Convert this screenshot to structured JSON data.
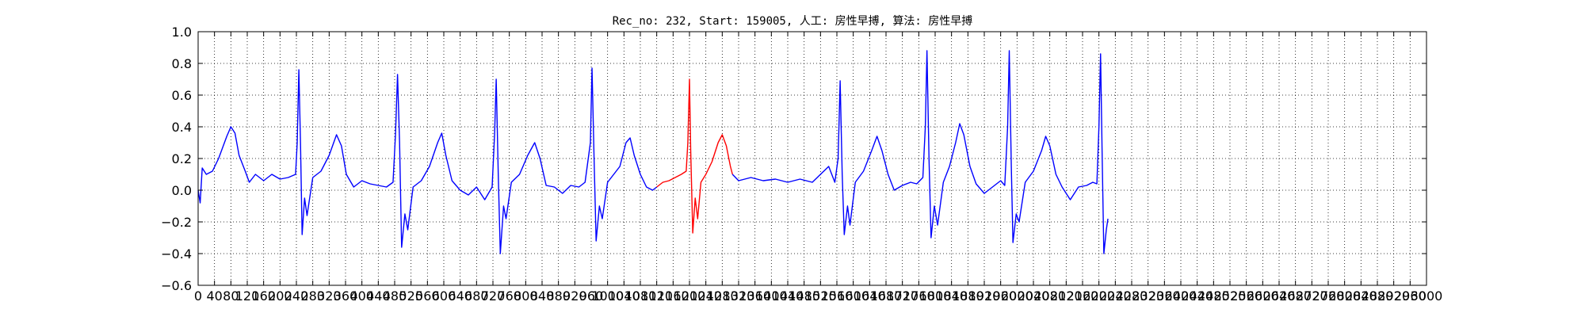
{
  "chart_data": {
    "type": "line",
    "title": "Rec_no: 232, Start: 159005, 人工: 房性早搏, 算法: 房性早搏",
    "xlabel": "",
    "ylabel": "",
    "xlim": [
      0,
      3000
    ],
    "ylim": [
      -0.6,
      1.0
    ],
    "grid": true,
    "grid_style": "dotted",
    "y_ticks": [
      -0.6,
      -0.4,
      -0.2,
      0.0,
      0.2,
      0.4,
      0.6,
      0.8,
      1.0
    ],
    "y_tick_labels": [
      "−0.6",
      "−0.4",
      "−0.2",
      "0.0",
      "0.2",
      "0.4",
      "0.6",
      "0.8",
      "1.0"
    ],
    "x_ticks": [
      0,
      40,
      80,
      120,
      160,
      200,
      240,
      280,
      320,
      360,
      400,
      440,
      480,
      520,
      560,
      600,
      640,
      680,
      720,
      760,
      800,
      840,
      880,
      920,
      960,
      1000,
      1040,
      1080,
      1120,
      1160,
      1200,
      1240,
      1280,
      1320,
      1360,
      1400,
      1440,
      1480,
      1520,
      1560,
      1600,
      1640,
      1680,
      1720,
      1760,
      1800,
      1840,
      1880,
      1920,
      1960,
      2000,
      2040,
      2080,
      2120,
      2160,
      2200,
      2240,
      2280,
      2320,
      2360,
      2400,
      2440,
      2480,
      2520,
      2560,
      2600,
      2640,
      2680,
      2720,
      2760,
      2800,
      2840,
      2880,
      2920,
      2960,
      3000
    ],
    "x_tick_labels": [
      "0",
      "40",
      "80",
      "120",
      "160",
      "200",
      "240",
      "280",
      "320",
      "360",
      "400",
      "440",
      "480",
      "520",
      "560",
      "600",
      "640",
      "680",
      "720",
      "760",
      "800",
      "840",
      "880",
      "920",
      "960",
      "1000",
      "1040",
      "1080",
      "1120",
      "1160",
      "1200",
      "1240",
      "1280",
      "1320",
      "1360",
      "1400",
      "1440",
      "1480",
      "1520",
      "1560",
      "1600",
      "1640",
      "1680",
      "1720",
      "1760",
      "1800",
      "1840",
      "1880",
      "1920",
      "1960",
      "2000",
      "2040",
      "2080",
      "2120",
      "2160",
      "2200",
      "2240",
      "2280",
      "2320",
      "2360",
      "2400",
      "2440",
      "2480",
      "2520",
      "2560",
      "2600",
      "2640",
      "2680",
      "2720",
      "2760",
      "2800",
      "2840",
      "2880",
      "2920",
      "2960",
      "3000"
    ],
    "series": [
      {
        "color": "#0000ff",
        "points": [
          [
            0,
            0.0
          ],
          [
            5,
            -0.08
          ],
          [
            10,
            0.14
          ],
          [
            20,
            0.1
          ],
          [
            35,
            0.12
          ],
          [
            50,
            0.2
          ],
          [
            70,
            0.34
          ],
          [
            80,
            0.4
          ],
          [
            90,
            0.36
          ],
          [
            100,
            0.22
          ],
          [
            115,
            0.12
          ],
          [
            125,
            0.05
          ],
          [
            140,
            0.1
          ],
          [
            160,
            0.06
          ],
          [
            180,
            0.1
          ],
          [
            200,
            0.07
          ],
          [
            220,
            0.08
          ],
          [
            238,
            0.1
          ],
          [
            242,
            0.3
          ],
          [
            246,
            0.76
          ],
          [
            250,
            0.3
          ],
          [
            254,
            -0.28
          ],
          [
            260,
            -0.05
          ],
          [
            266,
            -0.16
          ],
          [
            280,
            0.08
          ],
          [
            300,
            0.12
          ],
          [
            320,
            0.22
          ],
          [
            338,
            0.35
          ],
          [
            350,
            0.28
          ],
          [
            362,
            0.1
          ],
          [
            380,
            0.02
          ],
          [
            400,
            0.06
          ],
          [
            420,
            0.04
          ],
          [
            440,
            0.03
          ],
          [
            460,
            0.02
          ],
          [
            476,
            0.05
          ],
          [
            482,
            0.35
          ],
          [
            487,
            0.73
          ],
          [
            492,
            0.3
          ],
          [
            497,
            -0.36
          ],
          [
            505,
            -0.15
          ],
          [
            512,
            -0.25
          ],
          [
            525,
            0.02
          ],
          [
            545,
            0.06
          ],
          [
            565,
            0.15
          ],
          [
            585,
            0.3
          ],
          [
            595,
            0.36
          ],
          [
            605,
            0.22
          ],
          [
            620,
            0.06
          ],
          [
            640,
            0.0
          ],
          [
            660,
            -0.03
          ],
          [
            680,
            0.02
          ],
          [
            700,
            -0.06
          ],
          [
            718,
            0.02
          ],
          [
            724,
            0.35
          ],
          [
            728,
            0.7
          ],
          [
            733,
            0.1
          ],
          [
            738,
            -0.4
          ],
          [
            746,
            -0.1
          ],
          [
            752,
            -0.18
          ],
          [
            765,
            0.05
          ],
          [
            785,
            0.1
          ],
          [
            805,
            0.22
          ],
          [
            822,
            0.3
          ],
          [
            835,
            0.2
          ],
          [
            850,
            0.03
          ],
          [
            870,
            0.02
          ],
          [
            890,
            -0.02
          ],
          [
            910,
            0.03
          ],
          [
            930,
            0.02
          ],
          [
            945,
            0.05
          ],
          [
            958,
            0.3
          ],
          [
            962,
            0.77
          ],
          [
            967,
            0.2
          ],
          [
            972,
            -0.32
          ],
          [
            980,
            -0.1
          ],
          [
            987,
            -0.18
          ],
          [
            1000,
            0.05
          ],
          [
            1015,
            0.1
          ],
          [
            1030,
            0.15
          ],
          [
            1045,
            0.3
          ],
          [
            1055,
            0.33
          ],
          [
            1065,
            0.22
          ],
          [
            1080,
            0.1
          ],
          [
            1095,
            0.02
          ],
          [
            1110,
            0.0
          ],
          [
            1120,
            0.02
          ]
        ]
      },
      {
        "color": "#ff0000",
        "points": [
          [
            1120,
            0.02
          ],
          [
            1135,
            0.05
          ],
          [
            1150,
            0.06
          ],
          [
            1165,
            0.08
          ],
          [
            1180,
            0.1
          ],
          [
            1192,
            0.12
          ],
          [
            1196,
            0.3
          ],
          [
            1200,
            0.7
          ],
          [
            1203,
            0.25
          ],
          [
            1208,
            -0.27
          ],
          [
            1214,
            -0.05
          ],
          [
            1220,
            -0.18
          ],
          [
            1228,
            0.05
          ],
          [
            1240,
            0.1
          ],
          [
            1255,
            0.18
          ],
          [
            1270,
            0.3
          ],
          [
            1280,
            0.35
          ],
          [
            1290,
            0.28
          ],
          [
            1300,
            0.15
          ],
          [
            1305,
            0.1
          ]
        ]
      },
      {
        "color": "#0000ff",
        "points": [
          [
            1305,
            0.1
          ],
          [
            1320,
            0.06
          ],
          [
            1350,
            0.08
          ],
          [
            1380,
            0.06
          ],
          [
            1410,
            0.07
          ],
          [
            1440,
            0.05
          ],
          [
            1470,
            0.07
          ],
          [
            1500,
            0.05
          ],
          [
            1520,
            0.1
          ],
          [
            1540,
            0.15
          ],
          [
            1555,
            0.05
          ],
          [
            1563,
            0.2
          ],
          [
            1568,
            0.69
          ],
          [
            1573,
            0.1
          ],
          [
            1578,
            -0.28
          ],
          [
            1586,
            -0.1
          ],
          [
            1592,
            -0.22
          ],
          [
            1605,
            0.05
          ],
          [
            1625,
            0.12
          ],
          [
            1645,
            0.25
          ],
          [
            1658,
            0.34
          ],
          [
            1670,
            0.25
          ],
          [
            1685,
            0.1
          ],
          [
            1700,
            0.0
          ],
          [
            1720,
            0.03
          ],
          [
            1740,
            0.05
          ],
          [
            1755,
            0.04
          ],
          [
            1770,
            0.08
          ],
          [
            1776,
            0.4
          ],
          [
            1780,
            0.88
          ],
          [
            1785,
            0.2
          ],
          [
            1790,
            -0.3
          ],
          [
            1798,
            -0.1
          ],
          [
            1806,
            -0.22
          ],
          [
            1820,
            0.05
          ],
          [
            1835,
            0.15
          ],
          [
            1850,
            0.3
          ],
          [
            1860,
            0.42
          ],
          [
            1870,
            0.35
          ],
          [
            1885,
            0.15
          ],
          [
            1900,
            0.04
          ],
          [
            1920,
            -0.02
          ],
          [
            1940,
            0.02
          ],
          [
            1960,
            0.06
          ],
          [
            1970,
            0.03
          ],
          [
            1977,
            0.4
          ],
          [
            1981,
            0.88
          ],
          [
            1986,
            0.15
          ],
          [
            1990,
            -0.33
          ],
          [
            1998,
            -0.15
          ],
          [
            2005,
            -0.2
          ],
          [
            2020,
            0.05
          ],
          [
            2040,
            0.12
          ],
          [
            2060,
            0.25
          ],
          [
            2070,
            0.34
          ],
          [
            2080,
            0.28
          ],
          [
            2095,
            0.1
          ],
          [
            2110,
            0.02
          ],
          [
            2130,
            -0.06
          ],
          [
            2150,
            0.02
          ],
          [
            2170,
            0.03
          ],
          [
            2185,
            0.05
          ],
          [
            2195,
            0.04
          ],
          [
            2200,
            0.4
          ],
          [
            2204,
            0.86
          ],
          [
            2208,
            0.2
          ],
          [
            2212,
            -0.4
          ],
          [
            2218,
            -0.25
          ],
          [
            2222,
            -0.18
          ]
        ]
      }
    ]
  }
}
